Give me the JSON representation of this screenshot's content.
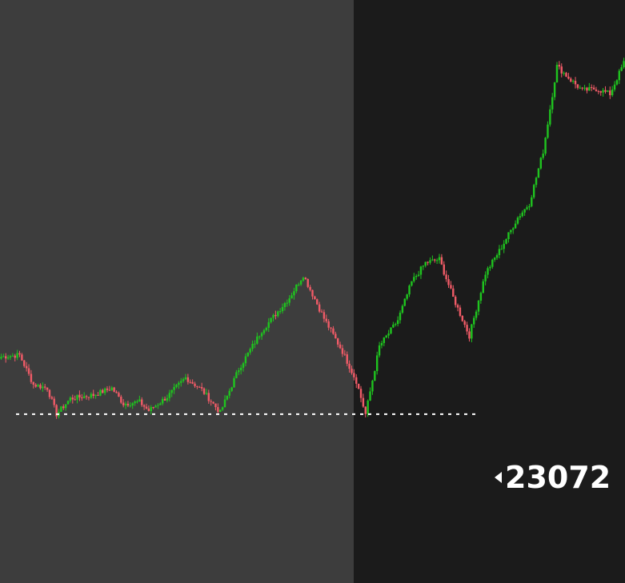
{
  "chart_data": {
    "type": "candlestick",
    "title": "",
    "xlabel": "",
    "ylabel": "",
    "grid": false,
    "legend": "none",
    "colors": {
      "up": "#1fc41f",
      "down": "#f05b67",
      "session_past_bg": "#3d3d3d",
      "session_current_bg": "#1b1b1b",
      "reference_line": "#ffffff",
      "label_text": "#ffffff"
    },
    "reference_level": {
      "value": 23072,
      "style": "dotted",
      "label": "23072"
    },
    "ylim": [
      22975,
      23310
    ],
    "sessions": [
      {
        "name": "previous",
        "start_index": 0
      },
      {
        "name": "current",
        "start_index": 154
      }
    ],
    "price_path_anchors": [
      {
        "i": 0,
        "price": 23105
      },
      {
        "i": 8,
        "price": 23106
      },
      {
        "i": 14,
        "price": 23089
      },
      {
        "i": 20,
        "price": 23087
      },
      {
        "i": 24,
        "price": 23072
      },
      {
        "i": 30,
        "price": 23081
      },
      {
        "i": 40,
        "price": 23083
      },
      {
        "i": 48,
        "price": 23087
      },
      {
        "i": 53,
        "price": 23078
      },
      {
        "i": 60,
        "price": 23079
      },
      {
        "i": 64,
        "price": 23074
      },
      {
        "i": 72,
        "price": 23082
      },
      {
        "i": 80,
        "price": 23093
      },
      {
        "i": 87,
        "price": 23086
      },
      {
        "i": 95,
        "price": 23073
      },
      {
        "i": 103,
        "price": 23098
      },
      {
        "i": 113,
        "price": 23120
      },
      {
        "i": 125,
        "price": 23139
      },
      {
        "i": 131,
        "price": 23152
      },
      {
        "i": 140,
        "price": 23127
      },
      {
        "i": 148,
        "price": 23108
      },
      {
        "i": 154,
        "price": 23091
      },
      {
        "i": 158,
        "price": 23072
      },
      {
        "i": 164,
        "price": 23111
      },
      {
        "i": 172,
        "price": 23126
      },
      {
        "i": 178,
        "price": 23148
      },
      {
        "i": 184,
        "price": 23159
      },
      {
        "i": 190,
        "price": 23161
      },
      {
        "i": 196,
        "price": 23139
      },
      {
        "i": 203,
        "price": 23117
      },
      {
        "i": 210,
        "price": 23153
      },
      {
        "i": 217,
        "price": 23168
      },
      {
        "i": 224,
        "price": 23185
      },
      {
        "i": 229,
        "price": 23193
      },
      {
        "i": 235,
        "price": 23223
      },
      {
        "i": 241,
        "price": 23272
      },
      {
        "i": 247,
        "price": 23264
      },
      {
        "i": 252,
        "price": 23258
      },
      {
        "i": 258,
        "price": 23259
      },
      {
        "i": 264,
        "price": 23256
      },
      {
        "i": 270,
        "price": 23274
      }
    ]
  }
}
